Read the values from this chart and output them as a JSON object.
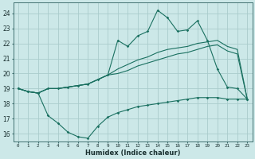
{
  "xlabel": "Humidex (Indice chaleur)",
  "background_color": "#cce8e8",
  "grid_color": "#aacccc",
  "line_color": "#1a7060",
  "x_hours": [
    0,
    1,
    2,
    3,
    4,
    5,
    6,
    7,
    8,
    9,
    10,
    11,
    12,
    13,
    14,
    15,
    16,
    17,
    18,
    19,
    20,
    21,
    22,
    23
  ],
  "line1": [
    19.0,
    18.8,
    18.7,
    19.0,
    19.0,
    19.1,
    19.2,
    19.3,
    19.6,
    19.9,
    22.2,
    21.8,
    22.5,
    22.8,
    24.2,
    23.7,
    22.8,
    22.9,
    23.5,
    22.2,
    20.3,
    19.1,
    19.0,
    18.3
  ],
  "line2": [
    19.0,
    18.8,
    18.7,
    19.0,
    19.0,
    19.1,
    19.2,
    19.3,
    19.6,
    19.9,
    20.3,
    20.6,
    20.9,
    21.1,
    21.4,
    21.6,
    21.7,
    21.8,
    22.0,
    22.1,
    22.2,
    21.8,
    21.6,
    18.3
  ],
  "line3": [
    19.0,
    18.8,
    18.7,
    19.0,
    19.0,
    19.1,
    19.2,
    19.3,
    19.6,
    19.9,
    20.0,
    20.2,
    20.5,
    20.7,
    20.9,
    21.1,
    21.3,
    21.4,
    21.6,
    21.8,
    21.9,
    21.5,
    21.3,
    18.3
  ],
  "line4": [
    19.0,
    18.8,
    18.7,
    17.2,
    16.7,
    16.1,
    15.8,
    15.7,
    16.5,
    17.1,
    17.4,
    17.6,
    17.8,
    17.9,
    18.0,
    18.1,
    18.2,
    18.3,
    18.4,
    18.4,
    18.4,
    18.3,
    18.3,
    18.3
  ],
  "ylim": [
    15.5,
    24.7
  ],
  "yticks": [
    16,
    17,
    18,
    19,
    20,
    21,
    22,
    23,
    24
  ],
  "xticks": [
    0,
    1,
    2,
    3,
    4,
    5,
    6,
    7,
    8,
    9,
    10,
    11,
    12,
    13,
    14,
    15,
    16,
    17,
    18,
    19,
    20,
    21,
    22,
    23
  ],
  "xlabels": [
    "0",
    "1",
    "2",
    "3",
    "4",
    "5",
    "6",
    "7",
    "8",
    "9",
    "10",
    "11",
    "12",
    "13",
    "14",
    "15",
    "16",
    "17",
    "18",
    "19",
    "20",
    "21",
    "22",
    "23"
  ]
}
